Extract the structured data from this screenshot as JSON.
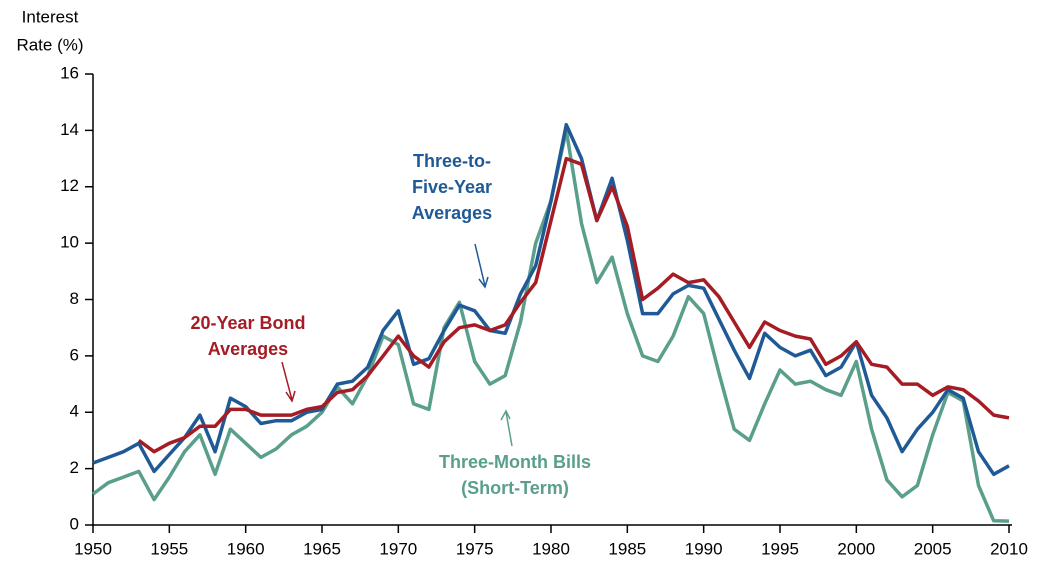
{
  "chart_data": {
    "type": "line",
    "y_label": [
      "Interest",
      "Rate (%)"
    ],
    "x": [
      1950,
      1951,
      1952,
      1953,
      1954,
      1955,
      1956,
      1957,
      1958,
      1959,
      1960,
      1961,
      1962,
      1963,
      1964,
      1965,
      1966,
      1967,
      1968,
      1969,
      1970,
      1971,
      1972,
      1973,
      1974,
      1975,
      1976,
      1977,
      1978,
      1979,
      1980,
      1981,
      1982,
      1983,
      1984,
      1985,
      1986,
      1987,
      1988,
      1989,
      1990,
      1991,
      1992,
      1993,
      1994,
      1995,
      1996,
      1997,
      1998,
      1999,
      2000,
      2001,
      2002,
      2003,
      2004,
      2005,
      2006,
      2007,
      2008,
      2009,
      2010
    ],
    "series": [
      {
        "name": "Three-Month Bills (Short-Term)",
        "color": "#5a9e8c",
        "values": [
          1.1,
          1.5,
          1.7,
          1.9,
          0.9,
          1.7,
          2.6,
          3.2,
          1.8,
          3.4,
          2.9,
          2.4,
          2.7,
          3.2,
          3.5,
          4.0,
          4.9,
          4.3,
          5.3,
          6.7,
          6.4,
          4.3,
          4.1,
          7.0,
          7.9,
          5.8,
          5.0,
          5.3,
          7.2,
          10.0,
          11.5,
          14.0,
          10.7,
          8.6,
          9.5,
          7.5,
          6.0,
          5.8,
          6.7,
          8.1,
          7.5,
          5.4,
          3.4,
          3.0,
          4.3,
          5.5,
          5.0,
          5.1,
          4.8,
          4.6,
          5.8,
          3.4,
          1.6,
          1.0,
          1.4,
          3.2,
          4.7,
          4.4,
          1.4,
          0.15,
          0.14
        ]
      },
      {
        "name": "Three-to-Five-Year Averages",
        "color": "#1f5a96",
        "values": [
          2.2,
          2.4,
          2.6,
          2.9,
          1.9,
          2.5,
          3.1,
          3.9,
          2.6,
          4.5,
          4.2,
          3.6,
          3.7,
          3.7,
          4.0,
          4.1,
          5.0,
          5.1,
          5.6,
          6.9,
          7.6,
          5.7,
          5.9,
          6.9,
          7.8,
          7.6,
          6.9,
          6.8,
          8.2,
          9.2,
          11.5,
          14.2,
          13.0,
          10.8,
          12.3,
          10.1,
          7.5,
          7.5,
          8.2,
          8.5,
          8.4,
          7.3,
          6.2,
          5.2,
          6.8,
          6.3,
          6.0,
          6.2,
          5.3,
          5.6,
          6.5,
          4.6,
          3.8,
          2.6,
          3.4,
          4.0,
          4.8,
          4.5,
          2.6,
          1.8,
          2.1
        ]
      },
      {
        "name": "20-Year Bond Averages",
        "color": "#a51c24",
        "values": [
          null,
          null,
          null,
          3.0,
          2.6,
          2.9,
          3.1,
          3.5,
          3.5,
          4.1,
          4.1,
          3.9,
          3.9,
          3.9,
          4.1,
          4.2,
          4.7,
          4.8,
          5.3,
          6.0,
          6.7,
          6.0,
          5.6,
          6.5,
          7.0,
          7.1,
          6.9,
          7.1,
          7.9,
          8.6,
          10.8,
          13.0,
          12.8,
          10.8,
          12.0,
          10.6,
          8.0,
          8.4,
          8.9,
          8.6,
          8.7,
          8.1,
          7.2,
          6.3,
          7.2,
          6.9,
          6.7,
          6.6,
          5.7,
          6.0,
          6.5,
          5.7,
          5.6,
          5.0,
          5.0,
          4.6,
          4.9,
          4.8,
          4.4,
          3.9,
          3.8
        ]
      }
    ],
    "annotations": [
      {
        "lines": [
          "Three-Month Bills",
          "(Short-Term)"
        ],
        "color": "#5a9e8c"
      },
      {
        "lines": [
          "Three-to-",
          "Five-Year",
          "Averages"
        ],
        "color": "#1f5a96"
      },
      {
        "lines": [
          "20-Year Bond",
          "Averages"
        ],
        "color": "#a51c24"
      }
    ],
    "xlim": [
      1950,
      2010
    ],
    "xticks": [
      1950,
      1955,
      1960,
      1965,
      1970,
      1975,
      1980,
      1985,
      1990,
      1995,
      2000,
      2005,
      2010
    ],
    "ylim": [
      0,
      16
    ],
    "yticks": [
      0,
      2,
      4,
      6,
      8,
      10,
      12,
      14,
      16
    ]
  }
}
